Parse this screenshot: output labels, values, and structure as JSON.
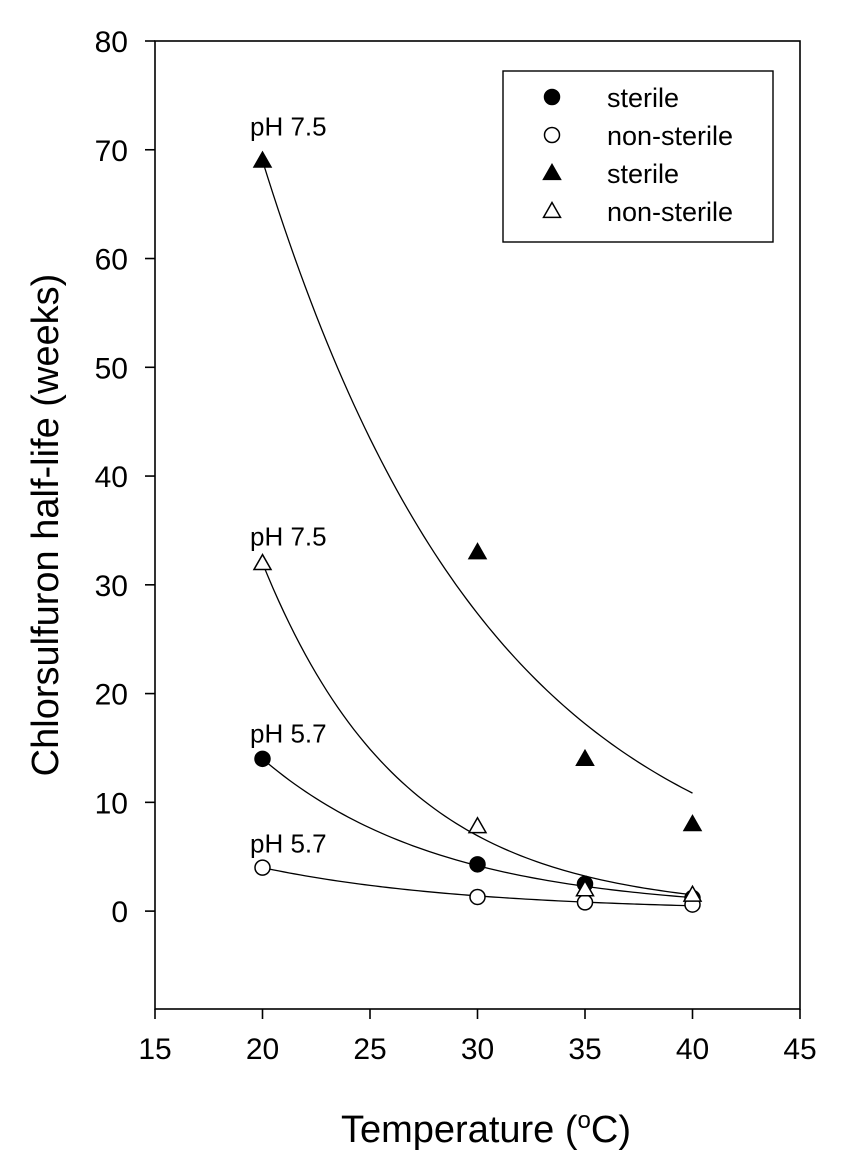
{
  "chart_data": {
    "type": "scatter",
    "title": "",
    "xlabel": "Temperature (",
    "xlabel_unit": "o",
    "xlabel_end": "C)",
    "ylabel": "Chlorsulfuron half-life (weeks)",
    "xlim": [
      15,
      45
    ],
    "ylim": [
      -9,
      80
    ],
    "xticks": [
      15,
      20,
      25,
      30,
      35,
      40,
      45
    ],
    "yticks": [
      0,
      10,
      20,
      30,
      40,
      50,
      60,
      70,
      80
    ],
    "grid": false,
    "legend_position": "top-right",
    "series": [
      {
        "name": "sterile",
        "ph": "pH 5.7",
        "marker": "circle",
        "filled": true,
        "x": [
          20,
          30,
          35,
          40
        ],
        "y": [
          14,
          4.3,
          2.5,
          1.2
        ],
        "fit": {
          "a": 14,
          "k": 0.121
        }
      },
      {
        "name": "non-sterile",
        "ph": "pH 5.7",
        "marker": "circle",
        "filled": false,
        "x": [
          20,
          30,
          35,
          40
        ],
        "y": [
          4,
          1.3,
          0.8,
          0.6
        ],
        "fit": {
          "a": 4,
          "k": 0.105
        }
      },
      {
        "name": "sterile",
        "ph": "pH 7.5",
        "marker": "triangle",
        "filled": true,
        "x": [
          20,
          30,
          35,
          40
        ],
        "y": [
          69,
          33,
          14,
          8
        ],
        "fit": {
          "a": 69,
          "k": 0.0925
        }
      },
      {
        "name": "non-sterile",
        "ph": "pH 7.5",
        "marker": "triangle",
        "filled": false,
        "x": [
          20,
          30,
          35,
          40
        ],
        "y": [
          32,
          7.8,
          2,
          1.5
        ],
        "fit": {
          "a": 32,
          "k": 0.153
        }
      }
    ],
    "annotations": [
      {
        "text": "pH 7.5",
        "x": 21.2,
        "y": 71.3
      },
      {
        "text": "pH 7.5",
        "x": 21.2,
        "y": 33.6
      },
      {
        "text": "pH 5.7",
        "x": 21.2,
        "y": 15.5
      },
      {
        "text": "pH 5.7",
        "x": 21.2,
        "y": 5.4
      }
    ],
    "legend": [
      "sterile",
      "non-sterile",
      "sterile",
      "non-sterile"
    ]
  }
}
